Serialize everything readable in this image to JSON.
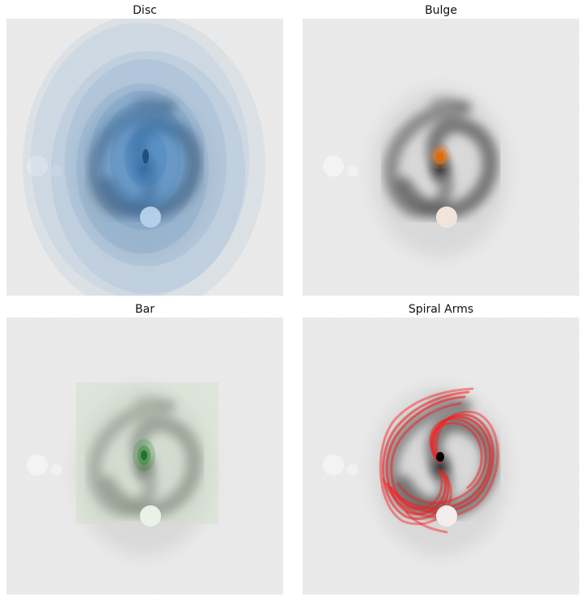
{
  "panels": [
    {
      "title": "Disc",
      "overlay": "disc",
      "color": "#3a7fc0"
    },
    {
      "title": "Bulge",
      "overlay": "bulge",
      "color": "#f07a1a"
    },
    {
      "title": "Bar",
      "overlay": "bar",
      "color": "#2f8f3a"
    },
    {
      "title": "Spiral Arms",
      "overlay": "spiral-arms",
      "color": "#ff1a1a"
    }
  ]
}
